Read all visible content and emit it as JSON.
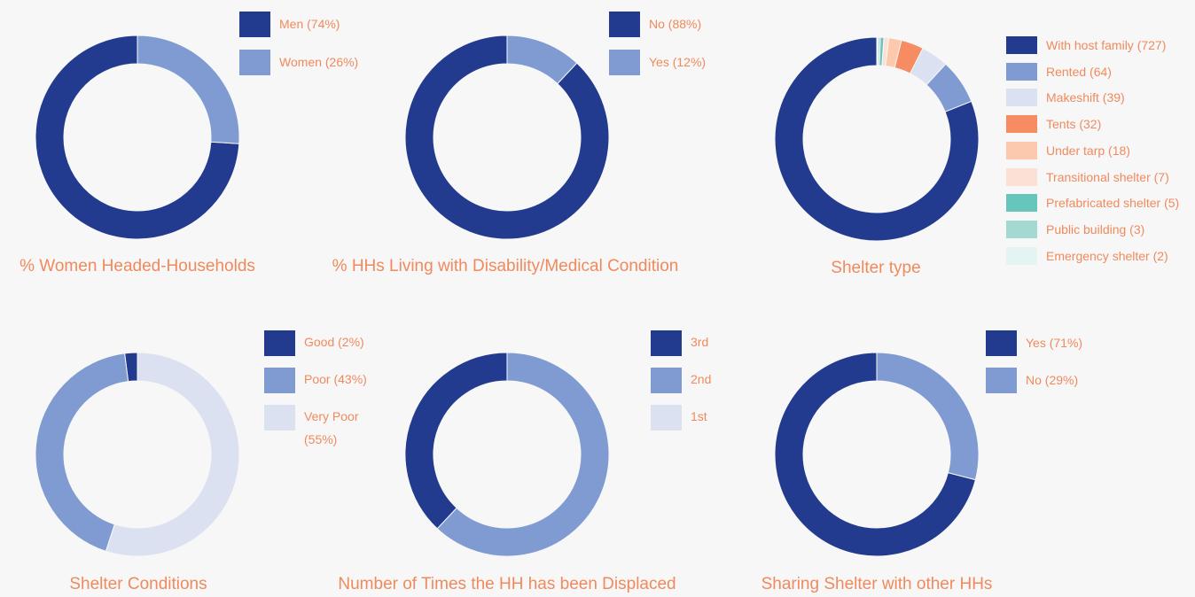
{
  "chart_data": [
    {
      "type": "donut",
      "title": "% Women Headed-Households",
      "categories": [
        "Men (74%)",
        "Women (26%)"
      ],
      "values": [
        74,
        26
      ],
      "colors": [
        "#233b8f",
        "#7f9bd1"
      ]
    },
    {
      "type": "donut",
      "title": "% HHs Living with Disability/Medical Condition",
      "categories": [
        "No (88%)",
        "Yes (12%)"
      ],
      "values": [
        88,
        12
      ],
      "colors": [
        "#233b8f",
        "#7f9bd1"
      ]
    },
    {
      "type": "donut",
      "title": "Shelter type",
      "categories": [
        "With host family (727)",
        "Rented (64)",
        "Makeshift (39)",
        "Tents (32)",
        "Under tarp (18)",
        "Transitional shelter (7)",
        "Prefabricated shelter (5)",
        "Public building (3)",
        "Emergency shelter (2)"
      ],
      "values": [
        727,
        64,
        39,
        32,
        18,
        7,
        5,
        3,
        2
      ],
      "colors": [
        "#233b8f",
        "#7f9bd1",
        "#dbe1f1",
        "#f78b62",
        "#fcc9ac",
        "#fde0d5",
        "#67c6bc",
        "#a3d9d2",
        "#e3f4f3"
      ]
    },
    {
      "type": "donut",
      "title": "Shelter Conditions",
      "categories": [
        "Good (2%)",
        "Poor (43%)",
        "Very Poor (55%)"
      ],
      "values": [
        2,
        43,
        55
      ],
      "colors": [
        "#233b8f",
        "#7f9bd1",
        "#dbe1f1"
      ]
    },
    {
      "type": "donut",
      "title": "Number of Times the HH has been Displaced",
      "categories": [
        "3rd",
        "2nd",
        "1st"
      ],
      "values": [
        38,
        62,
        0
      ],
      "colors": [
        "#233b8f",
        "#7f9bd1",
        "#dbe1f1"
      ]
    },
    {
      "type": "donut",
      "title": "Sharing Shelter with other HHs",
      "categories": [
        "Yes (71%)",
        "No (29%)"
      ],
      "values": [
        71,
        29
      ],
      "colors": [
        "#233b8f",
        "#7f9bd1"
      ]
    }
  ]
}
